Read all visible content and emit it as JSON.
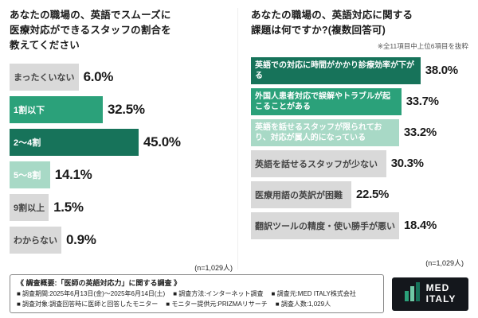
{
  "chart_data": [
    {
      "type": "bar",
      "orientation": "horizontal",
      "title": "あなたの職場の、英語でスムーズに医療対応ができるスタッフの割合を教えてください",
      "title_lines": [
        "あなたの職場の、英語でスムーズに",
        "医療対応ができるスタッフの割合を",
        "教えてください"
      ],
      "categories": [
        "まったくいない",
        "1割以下",
        "2〜4割",
        "5〜8割",
        "9割以上",
        "わからない"
      ],
      "values": [
        6.0,
        32.5,
        45.0,
        14.1,
        1.5,
        0.9
      ],
      "value_labels": [
        "6.0%",
        "32.5%",
        "45.0%",
        "14.1%",
        "1.5%",
        "0.9%"
      ],
      "bar_colors": [
        "#d9d9d9",
        "#2ba17a",
        "#17735a",
        "#a8d9c6",
        "#d9d9d9",
        "#d9d9d9"
      ],
      "label_colors": [
        "#444444",
        "#ffffff",
        "#ffffff",
        "#ffffff",
        "#444444",
        "#444444"
      ],
      "xlim": [
        0,
        50
      ],
      "n_label": "(n=1,029人)"
    },
    {
      "type": "bar",
      "orientation": "horizontal",
      "title": "あなたの職場の、英語対応に関する課題は何ですか?(複数回答可)",
      "title_lines": [
        "あなたの職場の、英語対応に関する",
        "課題は何ですか?(複数回答可)"
      ],
      "note": "※全11項目中上位6項目を抜粋",
      "categories": [
        "英語での対応に時間がかかり診療効率が下がる",
        "外国人患者対応で誤解やトラブルが起こることがある",
        "英語を話せるスタッフが限られており、対応が属人的になっている",
        "英語を話せるスタッフが少ない",
        "医療用語の英訳が困難",
        "翻訳ツールの精度・使い勝手が悪い"
      ],
      "values": [
        38.0,
        33.7,
        33.2,
        30.3,
        22.5,
        18.4
      ],
      "value_labels": [
        "38.0%",
        "33.7%",
        "33.2%",
        "30.3%",
        "22.5%",
        "18.4%"
      ],
      "bar_colors": [
        "#17735a",
        "#2ba17a",
        "#a8d9c6",
        "#d9d9d9",
        "#d9d9d9",
        "#d9d9d9"
      ],
      "label_colors": [
        "#ffffff",
        "#ffffff",
        "#ffffff",
        "#444444",
        "#444444",
        "#444444"
      ],
      "xlim": [
        0,
        42
      ],
      "n_label": "(n=1,029人)"
    }
  ],
  "footer": {
    "overview_title": "《 調査概要:「医師の英語対応力」に関する調査 》",
    "items_row1": [
      "■ 調査期間:2025年6月13日(金)〜2025年6月14日(土)",
      "■ 調査方法:インターネット調査",
      "■ 調査元:MED ITALY株式会社"
    ],
    "items_row2": [
      "■ 調査対象:調査回答時に医師と回答したモニター",
      "■ モニター提供元:PRIZMAリサーチ",
      "■ 調査人数:1,029人"
    ]
  },
  "logo": {
    "line1": "MED",
    "line2": "ITALY"
  }
}
